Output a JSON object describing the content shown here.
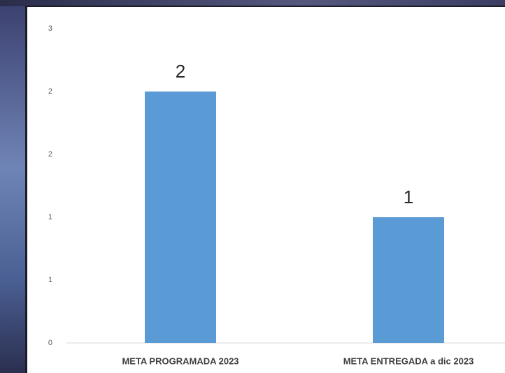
{
  "chart_data": {
    "type": "bar",
    "categories": [
      "META PROGRAMADA 2023",
      "META ENTREGADA a dic 2023"
    ],
    "values": [
      2,
      1
    ],
    "color": "#5b9bd5",
    "ylim": [
      0,
      2.5
    ],
    "yticks": [
      0,
      {
        "value": 0.5,
        "label": "1"
      },
      1,
      {
        "value": 1.5,
        "label": "2"
      },
      2,
      {
        "value": 2.5,
        "label": "3"
      }
    ],
    "grid": false
  }
}
